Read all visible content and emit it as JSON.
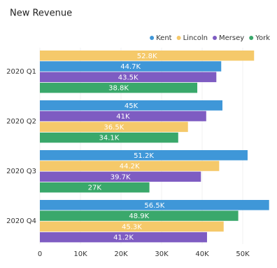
{
  "chart_data": {
    "type": "hbar",
    "title": "New Revenue",
    "categories": [
      "2020 Q1",
      "2020 Q2",
      "2020 Q3",
      "2020 Q4"
    ],
    "series": [
      {
        "name": "Kent",
        "color": "#3f97d8",
        "values": [
          44700,
          45000,
          51200,
          56500
        ],
        "value_labels": [
          "44.7K",
          "45K",
          "51.2K",
          "56.5K"
        ]
      },
      {
        "name": "Lincoln",
        "color": "#f5c96a",
        "values": [
          52800,
          36500,
          44200,
          45300
        ],
        "value_labels": [
          "52.8K",
          "36.5K",
          "44.2K",
          "45.3K"
        ]
      },
      {
        "name": "Mersey",
        "color": "#7e5cc2",
        "values": [
          43500,
          41000,
          39700,
          41200
        ],
        "value_labels": [
          "43.5K",
          "41K",
          "39.7K",
          "41.2K"
        ]
      },
      {
        "name": "York",
        "color": "#3aa86b",
        "values": [
          38800,
          34100,
          27000,
          48900
        ],
        "value_labels": [
          "38.8K",
          "34.1K",
          "27K",
          "48.9K"
        ]
      }
    ],
    "xlim": [
      0,
      56500
    ],
    "xticks": [
      0,
      {
        "value": 10000,
        "label": "10K"
      },
      {
        "value": 20000,
        "label": "20K"
      },
      {
        "value": 30000,
        "label": "30K"
      },
      {
        "value": 40000,
        "label": "40K"
      },
      {
        "value": 50000,
        "label": "50K"
      }
    ],
    "legend": "top-right"
  }
}
